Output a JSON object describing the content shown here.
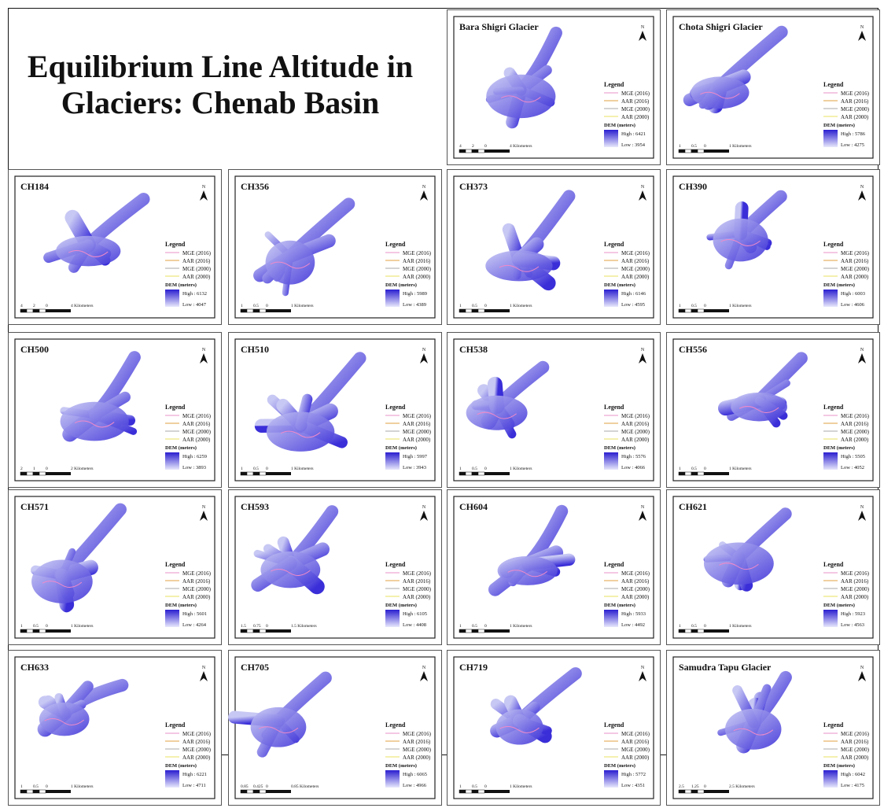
{
  "title": "Equilibrium Line Altitude in Glaciers: Chenab Basin",
  "legend": {
    "title": "Legend",
    "items": [
      "MGE (2016)",
      "AAR (2016)",
      "MGE (2000)",
      "AAR (2000)"
    ],
    "dem_title": "DEM (meters)"
  },
  "north": "N",
  "panels": [
    {
      "name": "Bara Shigri Glacier",
      "high": "High : 6421",
      "low": "Low : 3954",
      "scale": [
        "4",
        "2",
        "0",
        "4 Kilometers"
      ]
    },
    {
      "name": "Chota Shigri Glacier",
      "high": "High : 5786",
      "low": "Low : 4275",
      "scale": [
        "1",
        "0.5",
        "0",
        "1 Kilometers"
      ]
    },
    {
      "name": "CH184",
      "high": "High : 6132",
      "low": "Low : 4047",
      "scale": [
        "4",
        "2",
        "0",
        "4 Kilometers"
      ]
    },
    {
      "name": "CH356",
      "high": "High : 5989",
      "low": "Low : 4389",
      "scale": [
        "1",
        "0.5",
        "0",
        "1 Kilometers"
      ]
    },
    {
      "name": "CH373",
      "high": "High : 6146",
      "low": "Low : 4595",
      "scale": [
        "1",
        "0.5",
        "0",
        "1 Kilometers"
      ]
    },
    {
      "name": "CH390",
      "high": "High : 6003",
      "low": "Low : 4606",
      "scale": [
        "1",
        "0.5",
        "0",
        "1 Kilometers"
      ]
    },
    {
      "name": "CH500",
      "high": "High : 6259",
      "low": "Low : 3893",
      "scale": [
        "2",
        "1",
        "0",
        "2 Kilometers"
      ]
    },
    {
      "name": "CH510",
      "high": "High : 5997",
      "low": "Low : 3943",
      "scale": [
        "1",
        "0.5",
        "0",
        "1 Kilometers"
      ]
    },
    {
      "name": "CH538",
      "high": "High : 5576",
      "low": "Low : 4066",
      "scale": [
        "1",
        "0.5",
        "0",
        "1 Kilometers"
      ]
    },
    {
      "name": "CH556",
      "high": "High : 5505",
      "low": "Low : 4052",
      "scale": [
        "1",
        "0.5",
        "0",
        "1 Kilometers"
      ]
    },
    {
      "name": "CH571",
      "high": "High : 5601",
      "low": "Low : 4264",
      "scale": [
        "1",
        "0.5",
        "0",
        "1 Kilometers"
      ]
    },
    {
      "name": "CH593",
      "high": "High : 6105",
      "low": "Low : 4408",
      "scale": [
        "1.5",
        "0.75",
        "0",
        "1.5 Kilometers"
      ]
    },
    {
      "name": "CH604",
      "high": "High : 5933",
      "low": "Low : 4492",
      "scale": [
        "1",
        "0.5",
        "0",
        "1 Kilometers"
      ]
    },
    {
      "name": "CH621",
      "high": "High : 5923",
      "low": "Low : 4563",
      "scale": [
        "1",
        "0.5",
        "0",
        "1 Kilometers"
      ]
    },
    {
      "name": "CH633",
      "high": "High : 6221",
      "low": "Low : 4711",
      "scale": [
        "1",
        "0.5",
        "0",
        "1 Kilometers"
      ]
    },
    {
      "name": "CH705",
      "high": "High : 6065",
      "low": "Low : 4966",
      "scale": [
        "0.85",
        "0.425",
        "0",
        "0.85 Kilometers"
      ]
    },
    {
      "name": "CH719",
      "high": "High : 5772",
      "low": "Low : 4351",
      "scale": [
        "1",
        "0.5",
        "0",
        "1 Kilometers"
      ]
    },
    {
      "name": "Samudra Tapu Glacier",
      "high": "High : 6042",
      "low": "Low : 4175",
      "scale": [
        "2.5",
        "1.25",
        "0",
        "2.5 Kilometers"
      ]
    }
  ]
}
